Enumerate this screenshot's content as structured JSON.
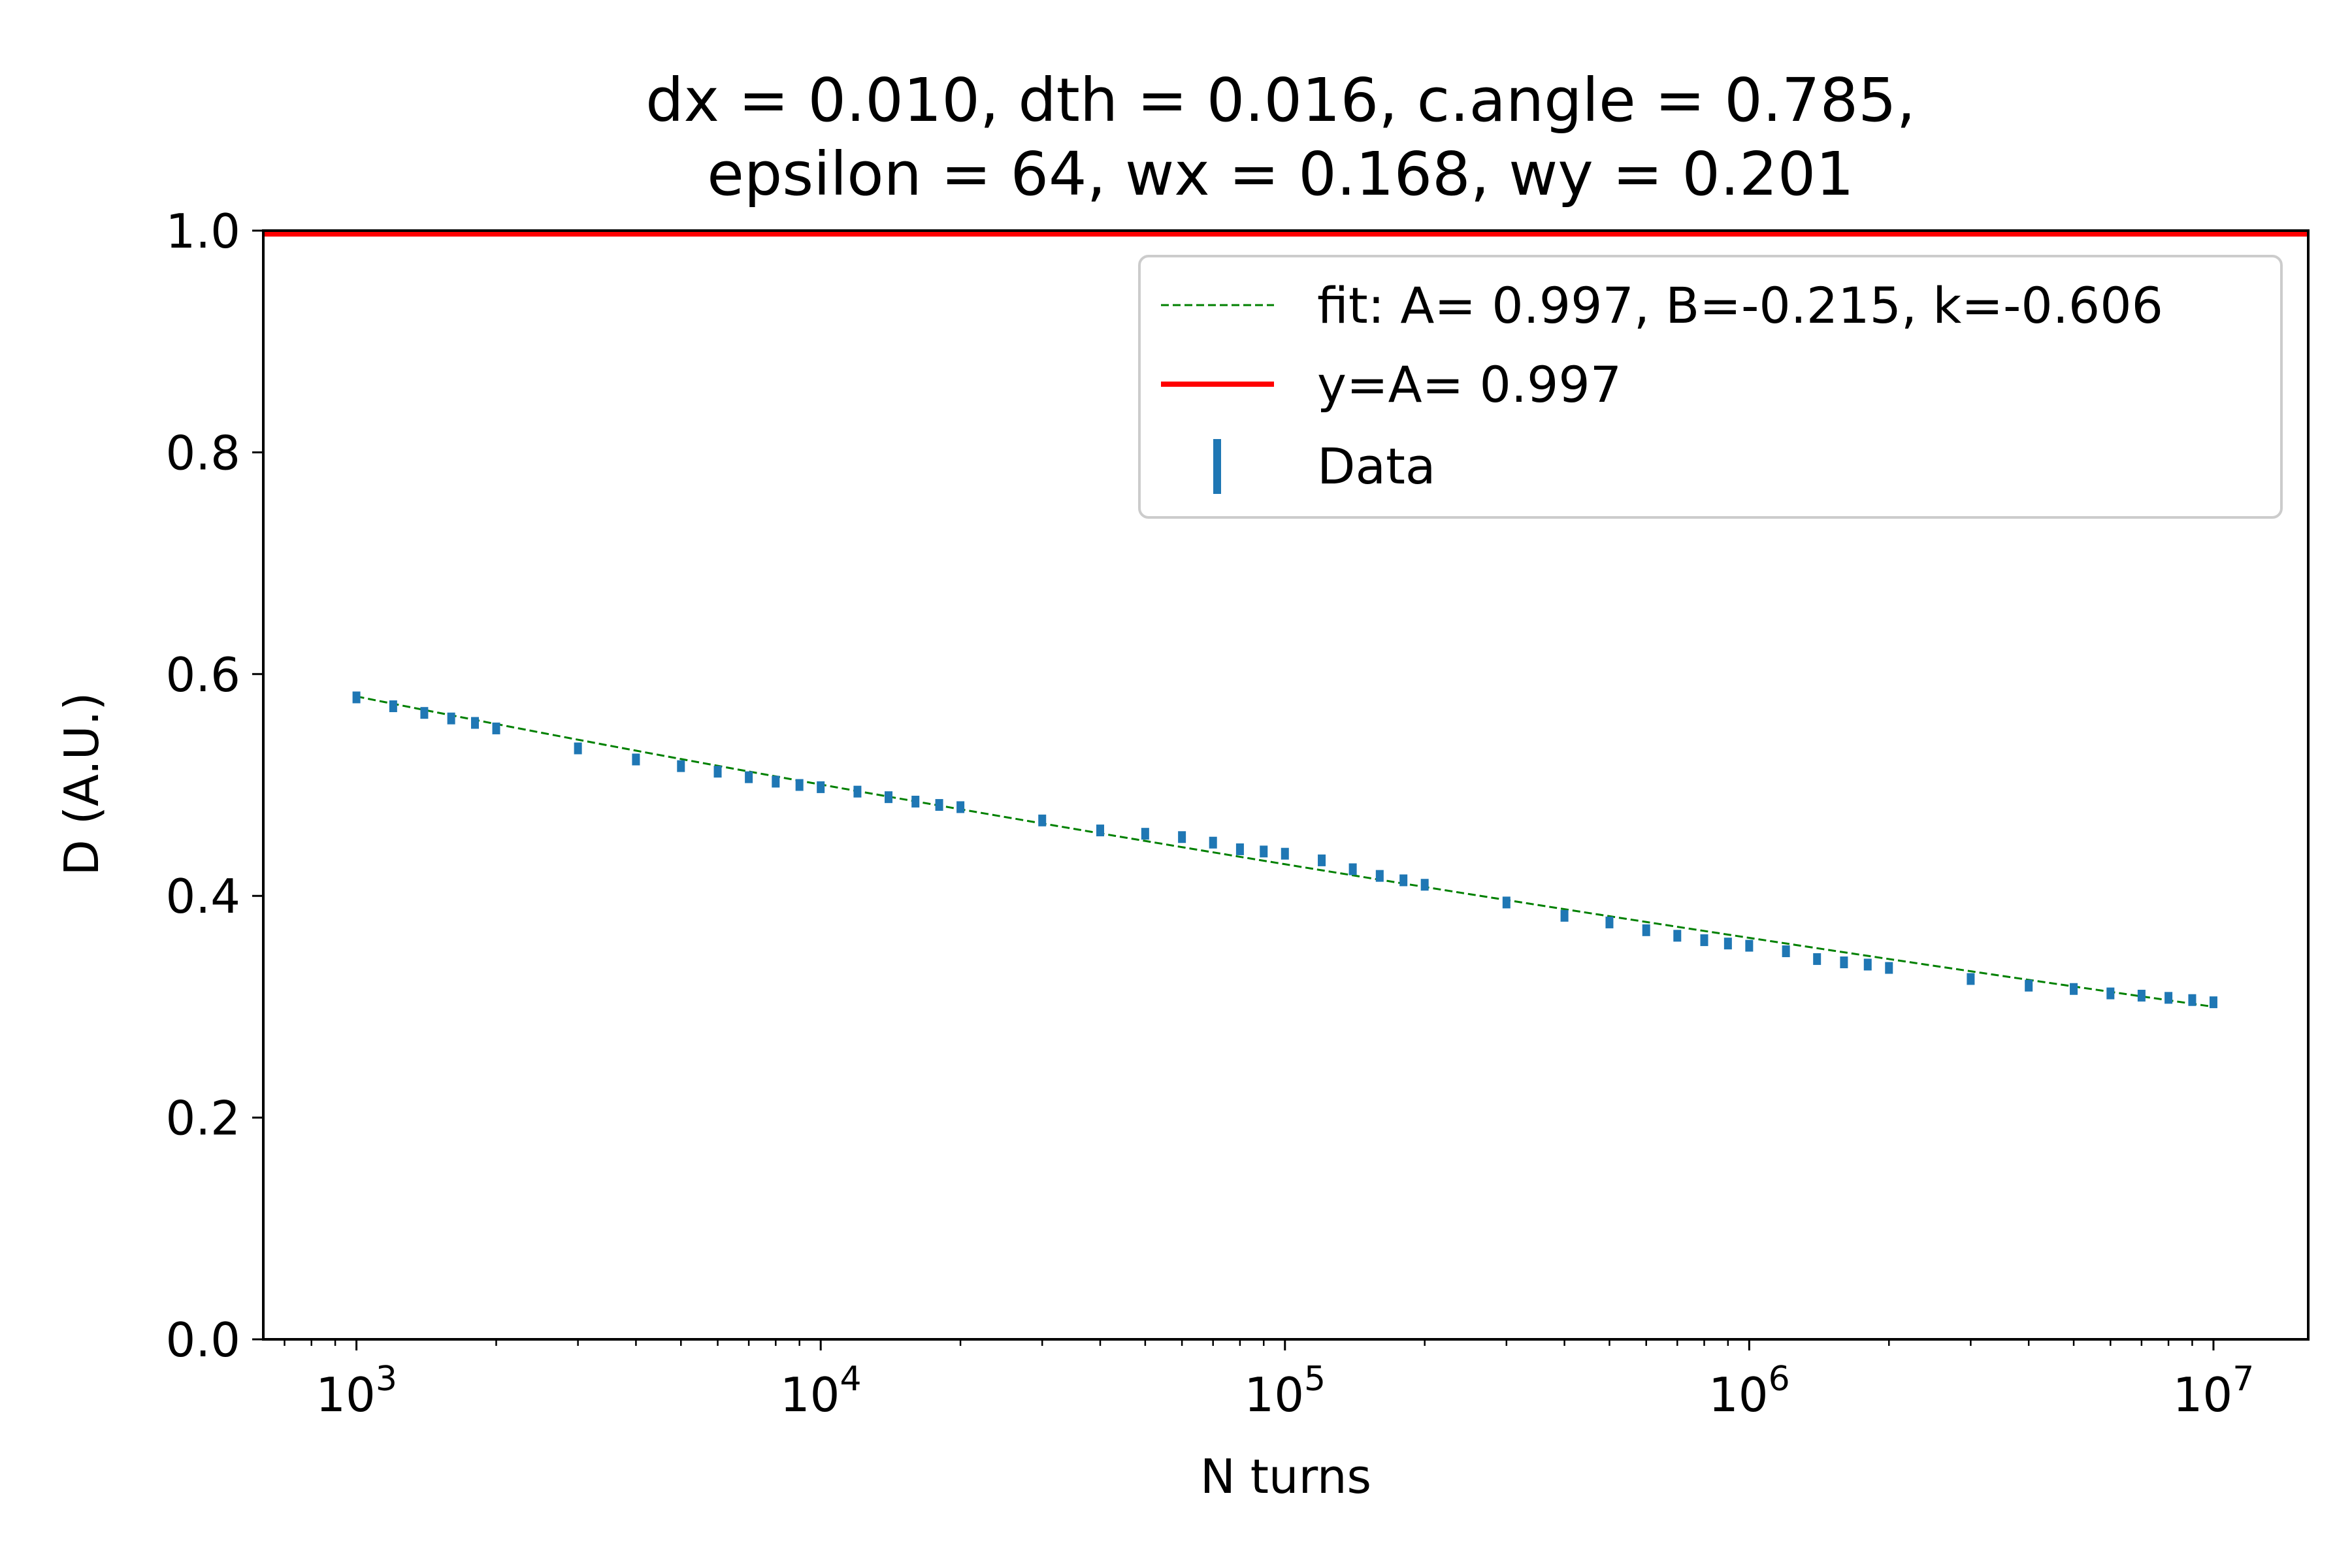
{
  "chart_data": {
    "type": "scatter",
    "title_lines": [
      "dx = 0.010, dth = 0.016, c.angle = 0.785,",
      "epsilon = 64, wx = 0.168, wy = 0.201"
    ],
    "xlabel": "N turns",
    "ylabel": "D (A.U.)",
    "xscale": "log",
    "xlim": [
      630,
      16000000
    ],
    "ylim": [
      0.0,
      1.0
    ],
    "xticks": [
      {
        "value": 1000,
        "base": "10",
        "exp": "3"
      },
      {
        "value": 10000,
        "base": "10",
        "exp": "4"
      },
      {
        "value": 100000,
        "base": "10",
        "exp": "5"
      },
      {
        "value": 1000000,
        "base": "10",
        "exp": "6"
      },
      {
        "value": 10000000,
        "base": "10",
        "exp": "7"
      }
    ],
    "yticks": [
      {
        "value": 0.0,
        "label": "0.0"
      },
      {
        "value": 0.2,
        "label": "0.2"
      },
      {
        "value": 0.4,
        "label": "0.4"
      },
      {
        "value": 0.6,
        "label": "0.6"
      },
      {
        "value": 0.8,
        "label": "0.8"
      },
      {
        "value": 1.0,
        "label": "1.0"
      }
    ],
    "grid": false,
    "legend_position": "top-right",
    "fit": {
      "A": 0.997,
      "B": -0.215,
      "k": -0.606
    },
    "series": [
      {
        "name": "fit: A= 0.997, B=-0.215, k=-0.606",
        "kind": "line",
        "style": "dashed",
        "color": "#008000",
        "x": [
          1000,
          10000000
        ]
      },
      {
        "name": "y=A= 0.997",
        "kind": "hline",
        "color": "#ff0000",
        "y": 0.997
      },
      {
        "name": "Data",
        "kind": "errorbar",
        "color": "#1f77b4",
        "x": [
          1000,
          1200,
          1400,
          1600,
          1800,
          2000,
          3000,
          4000,
          5000,
          6000,
          7000,
          8000,
          9000,
          10000,
          12000,
          14000,
          16000,
          18000,
          20000,
          30000,
          40000,
          50000,
          60000,
          70000,
          80000,
          90000,
          100000,
          120000,
          140000,
          160000,
          180000,
          200000,
          300000,
          400000,
          500000,
          600000,
          700000,
          800000,
          900000,
          1000000,
          1200000,
          1400000,
          1600000,
          1800000,
          2000000,
          3000000,
          4000000,
          5000000,
          6000000,
          7000000,
          8000000,
          9000000,
          10000000
        ],
        "y": [
          0.579,
          0.571,
          0.565,
          0.56,
          0.556,
          0.551,
          0.533,
          0.523,
          0.517,
          0.512,
          0.507,
          0.503,
          0.5,
          0.498,
          0.494,
          0.489,
          0.485,
          0.482,
          0.48,
          0.468,
          0.459,
          0.456,
          0.453,
          0.448,
          0.442,
          0.44,
          0.438,
          0.432,
          0.424,
          0.418,
          0.414,
          0.41,
          0.394,
          0.382,
          0.376,
          0.369,
          0.364,
          0.36,
          0.357,
          0.355,
          0.35,
          0.343,
          0.34,
          0.338,
          0.335,
          0.325,
          0.319,
          0.316,
          0.312,
          0.31,
          0.308,
          0.306,
          0.304
        ]
      }
    ]
  }
}
